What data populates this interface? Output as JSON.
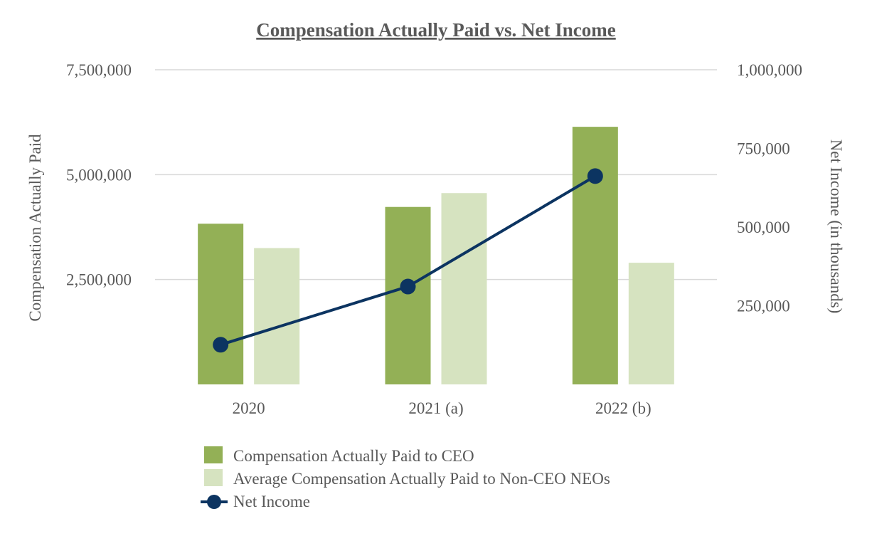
{
  "chart_data": {
    "type": "bar",
    "title": "Compensation Actually Paid vs. Net Income",
    "categories": [
      "2020",
      "2021 (a)",
      "2022 (b)"
    ],
    "y_left": {
      "label": "Compensation Actually Paid",
      "range": [
        0,
        7500000
      ],
      "ticks": [
        2500000,
        5000000,
        7500000
      ],
      "tick_labels": [
        "2,500,000",
        "5,000,000",
        "7,500,000"
      ]
    },
    "y_right": {
      "label": "Net Income (in thousands)",
      "range": [
        0,
        1000000
      ],
      "ticks": [
        250000,
        500000,
        750000,
        1000000
      ],
      "tick_labels": [
        "250,000",
        "500,000",
        "750,000",
        "1,000,000"
      ]
    },
    "series": [
      {
        "name": "Compensation Actually Paid to CEO",
        "type": "bar",
        "axis": "left",
        "color": "#93b056",
        "values": [
          3830000,
          4230000,
          6140000
        ]
      },
      {
        "name": "Average Compensation Actually Paid to Non-CEO NEOs",
        "type": "bar",
        "axis": "left",
        "color": "#d6e3c0",
        "values": [
          3250000,
          4560000,
          2900000
        ]
      },
      {
        "name": "Net Income",
        "type": "line",
        "axis": "right",
        "color": "#0c3461",
        "values": [
          126000,
          311000,
          662000
        ]
      }
    ],
    "grid": true,
    "legend": "bottom"
  }
}
